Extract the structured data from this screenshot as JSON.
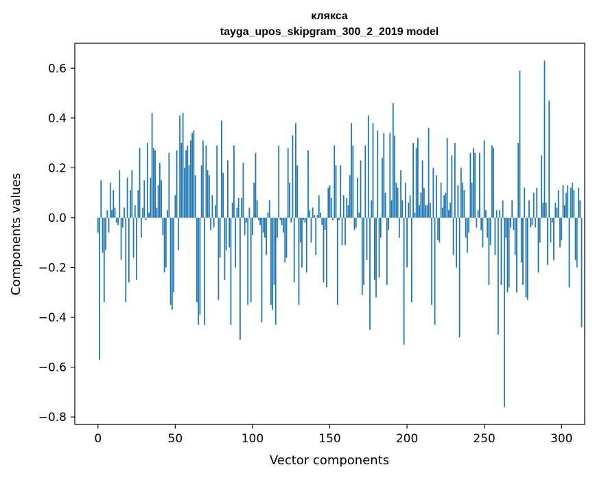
{
  "chart_data": {
    "type": "bar",
    "title": "клякса",
    "subtitle": "tayga_upos_skipgram_300_2_2019 model",
    "xlabel": "Vector components",
    "ylabel": "Components values",
    "xlim": [
      -15,
      315
    ],
    "ylim": [
      -0.83,
      0.7
    ],
    "xticks": [
      0,
      50,
      100,
      150,
      200,
      250,
      300
    ],
    "xtick_labels": [
      "0",
      "50",
      "100",
      "150",
      "200",
      "250",
      "300"
    ],
    "yticks": [
      -0.8,
      -0.6,
      -0.4,
      -0.2,
      0.0,
      0.2,
      0.4,
      0.6
    ],
    "ytick_labels": [
      "−0.8",
      "−0.6",
      "−0.4",
      "−0.2",
      "0.0",
      "0.2",
      "0.4",
      "0.6"
    ],
    "bar_color": "#1f77b4",
    "grid": false,
    "legend": "none",
    "values": [
      -0.06,
      -0.57,
      0.15,
      -0.14,
      -0.34,
      -0.13,
      0.03,
      -0.06,
      0.14,
      0.03,
      0.11,
      0.04,
      -0.02,
      -0.03,
      0.19,
      -0.17,
      -0.04,
      0.04,
      -0.34,
      0.16,
      -0.26,
      0.11,
      0.19,
      -0.16,
      0.05,
      -0.25,
      0.11,
      0.28,
      -0.08,
      0.04,
      0.15,
      -0.01,
      0.3,
      0.02,
      0.16,
      0.42,
      0.28,
      0.27,
      0.04,
      0.13,
      0.22,
      0.15,
      -0.07,
      -0.22,
      -0.2,
      0.03,
      0.26,
      -0.35,
      -0.37,
      -0.3,
      0.09,
      0.27,
      -0.13,
      0.41,
      0.3,
      0.42,
      0.2,
      0.27,
      0.29,
      0.21,
      0.31,
      0.34,
      0.35,
      0.17,
      -0.34,
      -0.43,
      -0.39,
      0.21,
      0.31,
      -0.43,
      0.29,
      0.19,
      0.17,
      -0.05,
      0.09,
      -0.04,
      0.05,
      0.29,
      -0.33,
      -0.16,
      0.39,
      0.18,
      -0.25,
      -0.13,
      0.23,
      -0.12,
      -0.43,
      0.06,
      0.29,
      -0.2,
      0.04,
      0.08,
      -0.49,
      0.08,
      0.22,
      -0.07,
      -0.02,
      -0.35,
      0.04,
      -0.34,
      -0.07,
      0.14,
      0.26,
      0.07,
      -0.01,
      -0.03,
      -0.42,
      -0.06,
      -0.08,
      -0.15,
      0.02,
      0.07,
      -0.35,
      -0.37,
      -0.27,
      -0.43,
      -0.08,
      0.29,
      -0.01,
      -0.03,
      -0.06,
      -0.18,
      -0.16,
      0.28,
      0.14,
      -0.02,
      0.33,
      -0.26,
      0.38,
      0.21,
      -0.35,
      -0.1,
      -0.2,
      -0.01,
      -0.02,
      -0.22,
      0.27,
      0.03,
      -0.1,
      0.04,
      0.01,
      -0.15,
      0.01,
      0.09,
      0.02,
      -0.03,
      -0.26,
      -0.05,
      -0.28,
      0.12,
      0.13,
      0.08,
      -0.01,
      0.29,
      0.21,
      -0.35,
      -0.01,
      0.21,
      -0.11,
      0.09,
      -0.11,
      0.08,
      0.05,
      0.17,
      0.38,
      0.29,
      -0.05,
      -0.04,
      0.16,
      0.02,
      0.23,
      -0.31,
      -0.27,
      0.29,
      -0.17,
      0.41,
      -0.45,
      0.07,
      0.38,
      -0.25,
      -0.32,
      0.35,
      -0.24,
      -0.08,
      0.24,
      0.34,
      0.1,
      -0.27,
      -0.05,
      0.34,
      0.07,
      0.46,
      0.33,
      0.14,
      0.12,
      -0.08,
      0.19,
      0.07,
      -0.51,
      0.14,
      -0.2,
      0.06,
      0.09,
      -0.34,
      0.3,
      0.02,
      0.28,
      0.32,
      0.05,
      0.1,
      0.23,
      0.12,
      0.05,
      0.05,
      0.36,
      0.06,
      -0.35,
      0.2,
      -0.43,
      0.17,
      -0.09,
      -0.1,
      0.14,
      0.04,
      0.09,
      0.1,
      0.32,
      0.03,
      0.06,
      0.25,
      -0.15,
      0.3,
      -0.2,
      0.13,
      -0.48,
      0.2,
      0.14,
      0.11,
      -0.08,
      -0.14,
      -0.06,
      0.26,
      0.14,
      0.28,
      0.26,
      -0.04,
      0.03,
      0.26,
      -0.05,
      -0.12,
      0.31,
      0.03,
      -0.08,
      -0.27,
      -0.11,
      0.29,
      0.28,
      -0.15,
      0.03,
      -0.47,
      0.03,
      -0.27,
      0.07,
      -0.76,
      -0.08,
      -0.3,
      -0.28,
      -0.04,
      0.07,
      -0.05,
      -0.15,
      -0.3,
      0.3,
      0.59,
      -0.18,
      -0.27,
      0.12,
      -0.32,
      -0.33,
      0.07,
      -0.04,
      -0.03,
      0.1,
      -0.04,
      0.12,
      -0.22,
      -0.1,
      0.25,
      0.06,
      0.63,
      0.06,
      -0.19,
      0.47,
      -0.1,
      -0.02,
      -0.17,
      0.06,
      0.04,
      0.11,
      -0.12,
      -0.09,
      0.13,
      0.05,
      0.1,
      0.13,
      -0.28,
      0.12,
      0.14,
      0.11,
      -0.17,
      -0.2,
      0.12,
      0.07,
      -0.44
    ]
  }
}
